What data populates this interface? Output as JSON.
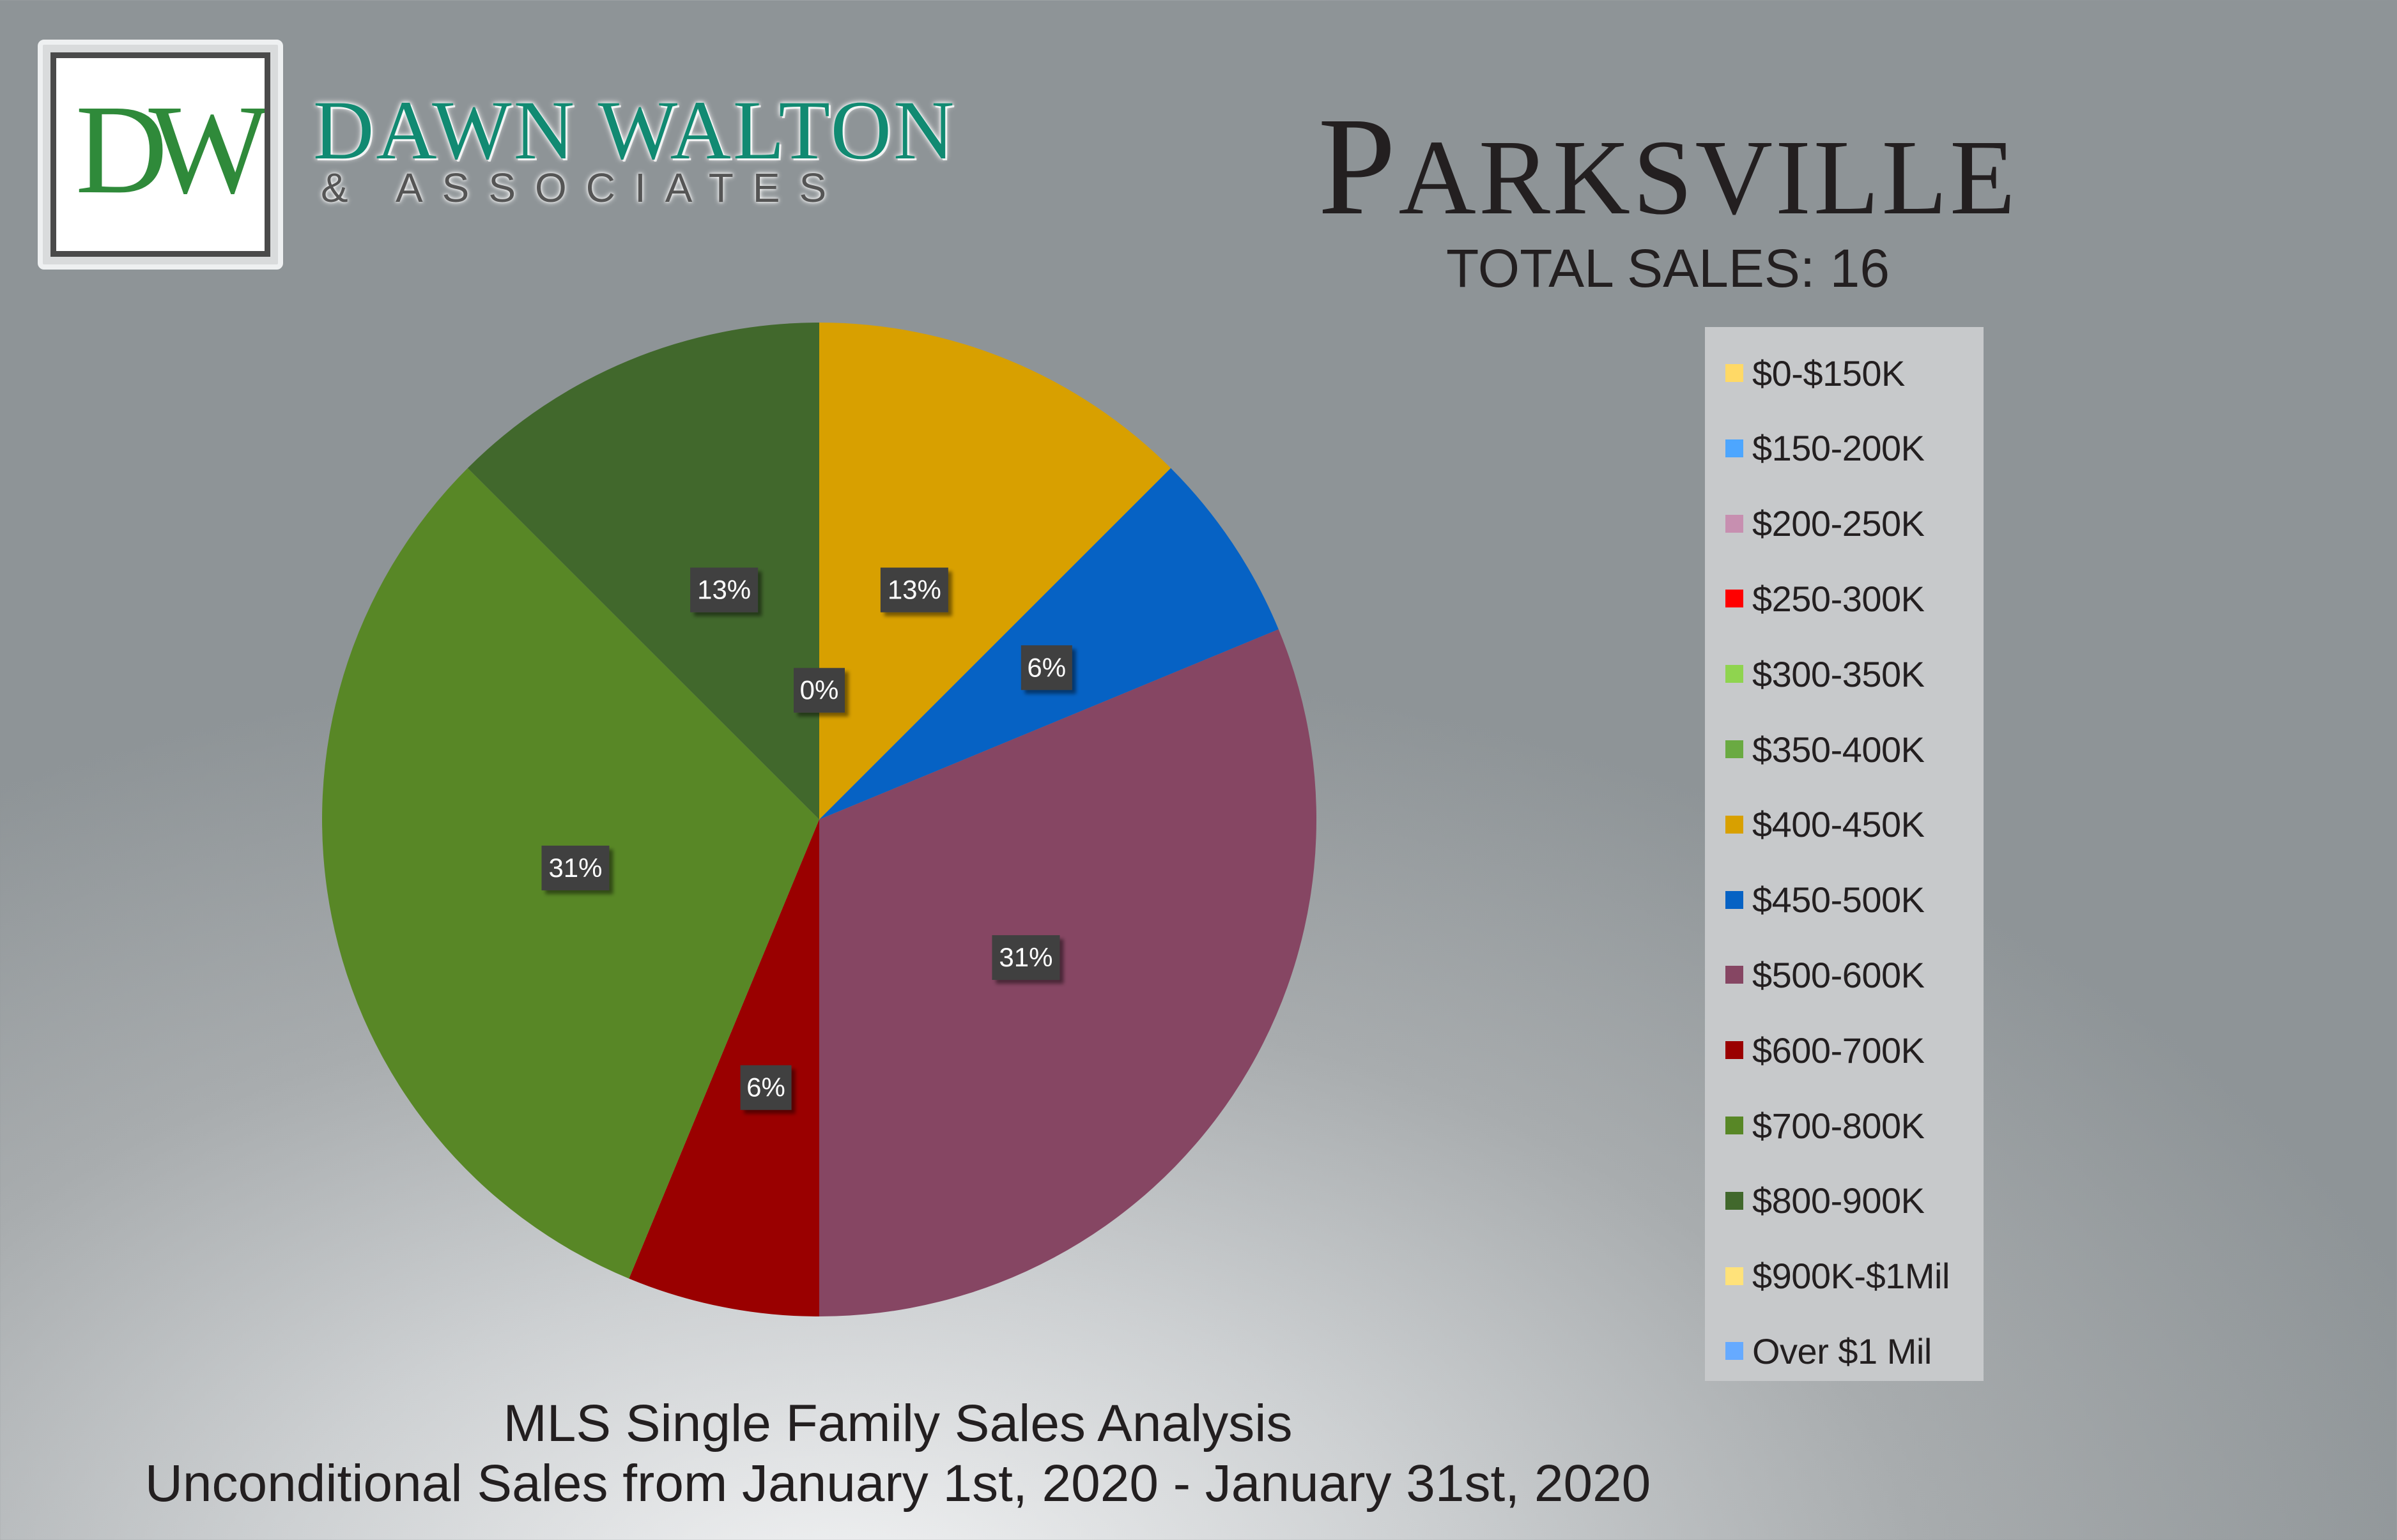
{
  "brand": {
    "logo_letters": "DW",
    "name": "DAWN WALTON",
    "sub": "& ASSOCIATES",
    "colors": {
      "green": "#2f8a3a",
      "teal": "#118a72"
    }
  },
  "header": {
    "city_first": "P",
    "city_rest": "ARKSVILLE",
    "total_sales": "TOTAL SALES: 16"
  },
  "footer": {
    "title": "MLS Single Family Sales Analysis",
    "subtitle": "Unconditional Sales from January 1st, 2020 - January 31st, 2020"
  },
  "chart_data": {
    "type": "pie",
    "title": "PARKSVILLE",
    "legend_position": "right",
    "categories": [
      "$0-$150K",
      "$150-200K",
      "$200-250K",
      "$250-300K",
      "$300-350K",
      "$350-400K",
      "$400-450K",
      "$450-500K",
      "$500-600K",
      "$600-700K",
      "$700-800K",
      "$800-900K",
      "$900K-$1Mil",
      "Over $1 Mil"
    ],
    "values": [
      0,
      0,
      0,
      0,
      0,
      0,
      2,
      1,
      5,
      1,
      5,
      2,
      0,
      0
    ],
    "labels": [
      "0%",
      "",
      "",
      "",
      "",
      "",
      "13%",
      "6%",
      "31%",
      "6%",
      "31%",
      "13%",
      "",
      ""
    ],
    "colors": [
      "#ffd966",
      "#4da6ff",
      "#c78fb0",
      "#ff0000",
      "#8fd44f",
      "#6aaa42",
      "#d8a000",
      "#0662c4",
      "#864663",
      "#9a0000",
      "#588726",
      "#41682c",
      "#ffe27a",
      "#66aaff"
    ]
  }
}
